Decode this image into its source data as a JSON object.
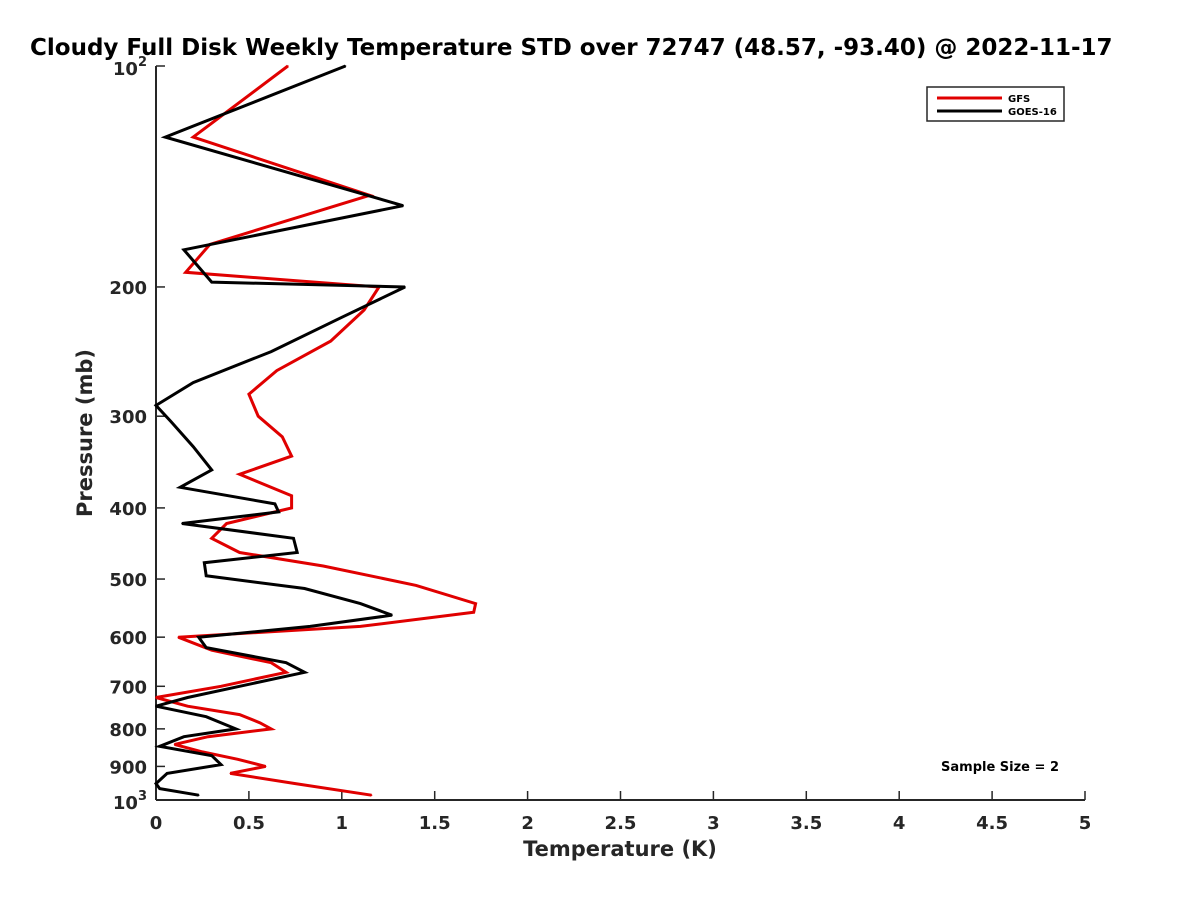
{
  "chart_data": {
    "type": "line",
    "title": "Cloudy Full Disk Weekly Temperature STD over 72747 (48.57, -93.40) @ 2022-11-17",
    "xlabel": "Temperature (K)",
    "ylabel": "Pressure (mb)",
    "xlim": [
      0,
      5
    ],
    "ylim": [
      100,
      1000
    ],
    "y_scale": "log",
    "y_reversed": true,
    "grid": false,
    "legend_position": "top-right",
    "x_ticks": [
      "0",
      "0.5",
      "1",
      "1.5",
      "2",
      "2.5",
      "3",
      "3.5",
      "4",
      "4.5",
      "5"
    ],
    "x_tick_values": [
      0,
      0.5,
      1,
      1.5,
      2,
      2.5,
      3,
      3.5,
      4,
      4.5,
      5
    ],
    "y_ticks": [
      {
        "value": 100,
        "base": "10",
        "exp": "2"
      },
      {
        "value": 200,
        "label": "200"
      },
      {
        "value": 300,
        "label": "300"
      },
      {
        "value": 400,
        "label": "400"
      },
      {
        "value": 500,
        "label": "500"
      },
      {
        "value": 600,
        "label": "600"
      },
      {
        "value": 700,
        "label": "700"
      },
      {
        "value": 800,
        "label": "800"
      },
      {
        "value": 900,
        "label": "900"
      },
      {
        "value": 1000,
        "base": "10",
        "exp": "3"
      }
    ],
    "annotation": "Sample Size = 2",
    "series": [
      {
        "name": "GFS",
        "color": "#e00000",
        "points": [
          [
            0.71,
            100
          ],
          [
            0.2,
            125
          ],
          [
            1.15,
            150
          ],
          [
            0.29,
            175
          ],
          [
            0.16,
            191
          ],
          [
            1.2,
            200
          ],
          [
            1.12,
            215
          ],
          [
            0.94,
            237
          ],
          [
            0.65,
            260
          ],
          [
            0.5,
            280
          ],
          [
            0.55,
            300
          ],
          [
            0.68,
            320
          ],
          [
            0.73,
            340
          ],
          [
            0.45,
            360
          ],
          [
            0.73,
            385
          ],
          [
            0.73,
            400
          ],
          [
            0.38,
            420
          ],
          [
            0.3,
            440
          ],
          [
            0.45,
            460
          ],
          [
            0.9,
            480
          ],
          [
            1.4,
            510
          ],
          [
            1.72,
            540
          ],
          [
            1.71,
            555
          ],
          [
            1.1,
            580
          ],
          [
            0.12,
            600
          ],
          [
            0.3,
            625
          ],
          [
            0.62,
            650
          ],
          [
            0.7,
            670
          ],
          [
            0.35,
            700
          ],
          [
            0.0,
            725
          ],
          [
            0.17,
            745
          ],
          [
            0.45,
            765
          ],
          [
            0.56,
            785
          ],
          [
            0.62,
            800
          ],
          [
            0.28,
            820
          ],
          [
            0.1,
            840
          ],
          [
            0.25,
            860
          ],
          [
            0.44,
            880
          ],
          [
            0.59,
            900
          ],
          [
            0.4,
            920
          ],
          [
            0.75,
            950
          ],
          [
            1.16,
            985
          ]
        ]
      },
      {
        "name": "GOES-16",
        "color": "#000000",
        "points": [
          [
            1.02,
            100
          ],
          [
            0.05,
            125
          ],
          [
            1.33,
            155
          ],
          [
            0.15,
            178
          ],
          [
            0.3,
            197
          ],
          [
            1.34,
            200
          ],
          [
            1.0,
            220
          ],
          [
            0.62,
            245
          ],
          [
            0.2,
            270
          ],
          [
            0.0,
            290
          ],
          [
            0.08,
            305
          ],
          [
            0.2,
            330
          ],
          [
            0.3,
            355
          ],
          [
            0.13,
            375
          ],
          [
            0.64,
            395
          ],
          [
            0.66,
            405
          ],
          [
            0.14,
            420
          ],
          [
            0.74,
            440
          ],
          [
            0.76,
            460
          ],
          [
            0.26,
            475
          ],
          [
            0.27,
            495
          ],
          [
            0.8,
            515
          ],
          [
            1.1,
            540
          ],
          [
            1.27,
            560
          ],
          [
            0.83,
            580
          ],
          [
            0.23,
            600
          ],
          [
            0.27,
            620
          ],
          [
            0.7,
            650
          ],
          [
            0.8,
            670
          ],
          [
            0.45,
            700
          ],
          [
            0.17,
            725
          ],
          [
            0.0,
            745
          ],
          [
            0.27,
            770
          ],
          [
            0.43,
            800
          ],
          [
            0.15,
            820
          ],
          [
            0.02,
            845
          ],
          [
            0.3,
            870
          ],
          [
            0.35,
            895
          ],
          [
            0.06,
            920
          ],
          [
            0.0,
            950
          ],
          [
            0.02,
            965
          ],
          [
            0.23,
            985
          ]
        ]
      }
    ]
  }
}
